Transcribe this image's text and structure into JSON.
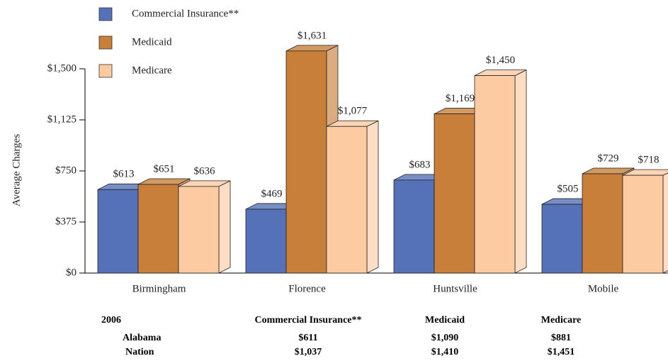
{
  "chart_data": {
    "type": "bar3d",
    "y_axis_label": "Average Charges",
    "categories": [
      "Birmingham",
      "Florence",
      "Huntsville",
      "Mobile"
    ],
    "series": [
      {
        "name": "Commercial Insurance**",
        "color": "#5572b8",
        "values": [
          613,
          469,
          683,
          505
        ],
        "value_labels": [
          "$613",
          "$469",
          "$683",
          "$505"
        ]
      },
      {
        "name": "Medicaid",
        "color": "#c77f3a",
        "values": [
          651,
          1631,
          1169,
          729
        ],
        "value_labels": [
          "$651",
          "$1,631",
          "$1,169",
          "$729"
        ]
      },
      {
        "name": "Medicare",
        "color": "#fccba2",
        "values": [
          636,
          1077,
          1450,
          718
        ],
        "value_labels": [
          "$636",
          "$1,077",
          "$1,450",
          "$718"
        ]
      }
    ],
    "ylim": [
      0,
      1500
    ],
    "yticks": [
      {
        "value": 0,
        "label": "$0"
      },
      {
        "value": 375,
        "label": "$375"
      },
      {
        "value": 750,
        "label": "$750"
      },
      {
        "value": 1125,
        "label": "$1,125"
      },
      {
        "value": 1500,
        "label": "$1,500"
      }
    ],
    "table": {
      "header": [
        "2006",
        "Commercial Insurance**",
        "Medicaid",
        "Medicare"
      ],
      "rows": [
        [
          "Alabama",
          "$611",
          "$1,090",
          "$881"
        ],
        [
          "Nation",
          "$1,037",
          "$1,410",
          "$1,451"
        ]
      ]
    }
  }
}
